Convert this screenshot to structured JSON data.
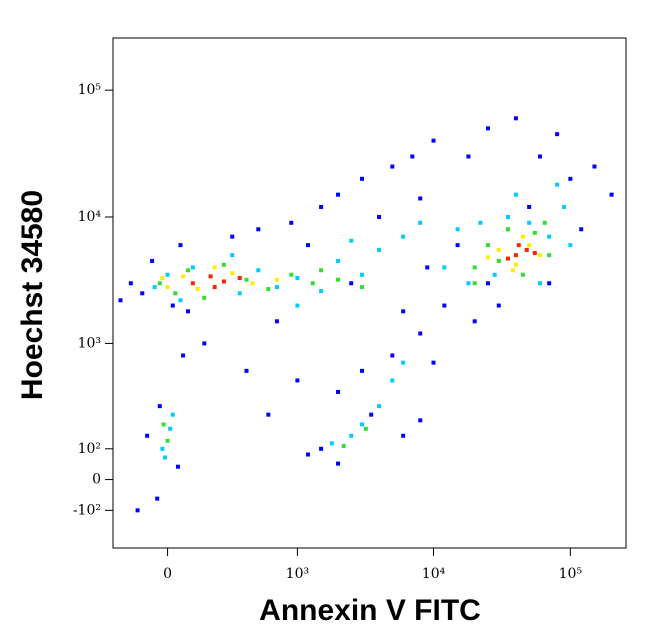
{
  "chart_data": {
    "type": "scatter",
    "x_label": "Annexin V FITC",
    "y_label": "Hoechst 34580",
    "xscale": "biexponential",
    "yscale": "biexponential",
    "grid": false,
    "xlim": [
      -240,
      255000
    ],
    "ylim": [
      -270,
      258000
    ],
    "xticks": [
      0,
      {
        "value": 1000,
        "label": "10³"
      },
      {
        "value": 10000,
        "label": "10⁴"
      },
      {
        "value": 100000,
        "label": "10⁵"
      }
    ],
    "yticks": [
      {
        "value": -100,
        "label": "-10²"
      },
      0,
      {
        "value": 100,
        "label": "10²"
      },
      {
        "value": 1000,
        "label": "10³"
      },
      {
        "value": 10000,
        "label": "10⁴"
      },
      {
        "value": 100000,
        "label": "10⁵"
      }
    ],
    "series": [
      {
        "color": "#0000ff",
        "x": [
          -150,
          -100,
          -60,
          20,
          50,
          80,
          300,
          500,
          700,
          900,
          1200,
          1500,
          2000,
          2500,
          3000,
          4000,
          5000,
          6000,
          7000,
          8000,
          10000,
          12000,
          15000,
          18000,
          25000,
          30000,
          40000,
          60000,
          80000,
          100000,
          120000,
          150000,
          70000,
          5000,
          8000,
          3000,
          2000,
          10000,
          20000,
          1000,
          400,
          -30,
          60,
          -80,
          40,
          -40,
          -120,
          1500,
          2000,
          6000,
          8000,
          3500,
          1200,
          150,
          -200,
          200000,
          25000,
          50000,
          9000,
          600
        ],
        "y": [
          3000,
          2500,
          4500,
          2000,
          6000,
          1800,
          7000,
          8000,
          1500,
          9000,
          6000,
          12000,
          15000,
          3000,
          20000,
          10000,
          25000,
          1800,
          30000,
          14000,
          40000,
          2000,
          6000,
          30000,
          50000,
          2000,
          60000,
          30000,
          45000,
          20000,
          8000,
          25000,
          3000,
          800,
          1200,
          600,
          400,
          700,
          1500,
          500,
          600,
          300,
          800,
          150,
          40,
          -60,
          -100,
          100,
          50,
          150,
          220,
          250,
          80,
          1000,
          2200,
          15000,
          3000,
          12000,
          4000,
          250
        ]
      },
      {
        "color": "#00ccff",
        "x": [
          -50,
          0,
          50,
          100,
          350,
          500,
          700,
          1000,
          1500,
          2000,
          3000,
          4000,
          6000,
          8000,
          12000,
          15000,
          18000,
          22000,
          28000,
          35000,
          50000,
          70000,
          90000,
          60000,
          2500,
          3000,
          4000,
          1800,
          -20,
          10,
          -10,
          20,
          5000,
          6000,
          1000,
          300,
          2500,
          40000,
          80000,
          100000
        ],
        "y": [
          2800,
          3500,
          2200,
          4000,
          2500,
          3800,
          2800,
          3300,
          2600,
          4500,
          3500,
          5500,
          7000,
          9000,
          4000,
          8000,
          3000,
          9000,
          3500,
          10000,
          9000,
          7000,
          12000,
          3000,
          150,
          200,
          300,
          120,
          100,
          180,
          70,
          250,
          500,
          700,
          2000,
          5000,
          6500,
          15000,
          18000,
          6000
        ]
      },
      {
        "color": "#33dd33",
        "x": [
          -30,
          30,
          80,
          150,
          400,
          600,
          900,
          1300,
          2000,
          3000,
          20000,
          25000,
          30000,
          45000,
          55000,
          70000,
          35000,
          3200,
          2200,
          0,
          -15,
          20000,
          65000,
          250,
          1500
        ],
        "y": [
          3000,
          2500,
          3800,
          2300,
          3200,
          2700,
          3500,
          3000,
          3200,
          2800,
          4000,
          6000,
          4500,
          3500,
          7500,
          5000,
          8000,
          180,
          110,
          130,
          200,
          3000,
          9000,
          4200,
          3800
        ]
      },
      {
        "color": "#ffee00",
        "x": [
          0,
          60,
          120,
          300,
          450,
          30000,
          40000,
          50000,
          38000,
          60000,
          25000,
          200,
          -20,
          45000,
          700
        ],
        "y": [
          2800,
          3400,
          2700,
          3600,
          3000,
          5500,
          4200,
          6000,
          3800,
          5000,
          4800,
          4000,
          3300,
          7000,
          3200
        ]
      },
      {
        "color": "#ff2200",
        "x": [
          100,
          180,
          250,
          350,
          200,
          40000,
          48000,
          35000,
          55000,
          42000
        ],
        "y": [
          3000,
          3400,
          3100,
          3300,
          2800,
          5000,
          5500,
          4700,
          5200,
          6000
        ]
      }
    ]
  }
}
